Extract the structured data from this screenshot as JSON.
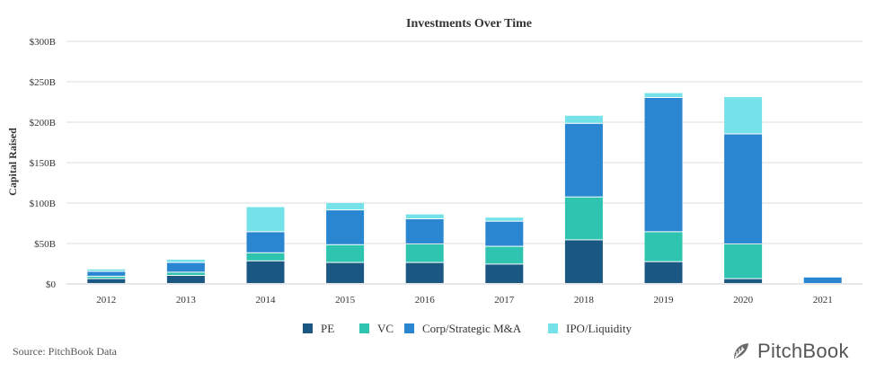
{
  "chart_data": {
    "type": "bar",
    "stacked": true,
    "title": "Investments Over Time",
    "xlabel": "",
    "ylabel": "Capital Raised",
    "ylim": [
      0,
      300
    ],
    "y_ticks": [
      0,
      50,
      100,
      150,
      200,
      250,
      300
    ],
    "y_tick_labels": [
      "$0",
      "$50B",
      "$100B",
      "$150B",
      "$200B",
      "$250B",
      "$300B"
    ],
    "grid": true,
    "legend_position": "bottom-center",
    "categories": [
      "2012",
      "2013",
      "2014",
      "2015",
      "2016",
      "2017",
      "2018",
      "2019",
      "2020",
      "2021"
    ],
    "series": [
      {
        "name": "PE",
        "color": "#1a5782",
        "values": [
          6,
          10,
          28,
          26,
          26,
          24,
          54,
          27,
          6,
          0
        ]
      },
      {
        "name": "VC",
        "color": "#2ec4b0",
        "values": [
          3,
          4,
          10,
          22,
          23,
          22,
          53,
          37,
          43,
          0
        ]
      },
      {
        "name": "Corp/Strategic M&A",
        "color": "#2a86d0",
        "values": [
          6,
          12,
          26,
          43,
          31,
          31,
          91,
          166,
          136,
          8
        ]
      },
      {
        "name": "IPO/Liquidity",
        "color": "#74e2e8",
        "values": [
          3,
          4,
          31,
          9,
          6,
          5,
          10,
          6,
          46,
          1
        ]
      }
    ]
  },
  "footer": {
    "source": "Source: PitchBook Data",
    "brand": "PitchBook"
  }
}
